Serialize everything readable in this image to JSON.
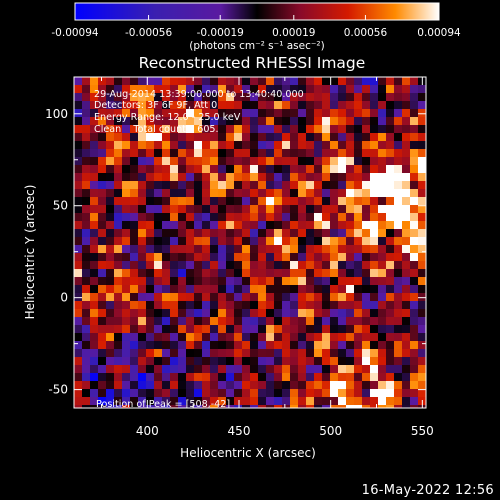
{
  "colorbar": {
    "ticks": [
      "-0.00094",
      "-0.00056",
      "-0.00019",
      "0.00019",
      "0.00056",
      "0.00094"
    ],
    "unit_label": "(photons cm⁻² s⁻¹ asec⁻²)",
    "colors": [
      "#0000ff",
      "#3a1fb0",
      "#5a1aa0",
      "#000000",
      "#8a0a2a",
      "#d41a00",
      "#ff8a00",
      "#ffffff"
    ]
  },
  "chart_data": {
    "type": "heatmap",
    "title": "Reconstructed RHESSI Image",
    "xlabel": "Heliocentric X (arcsec)",
    "ylabel": "Heliocentric Y (arcsec)",
    "xlim": [
      360,
      552
    ],
    "ylim": [
      -60,
      120
    ],
    "xticks": [
      400,
      450,
      500,
      550
    ],
    "yticks": [
      -50,
      0,
      50,
      100
    ],
    "zlim": [
      -0.00094,
      0.00094
    ],
    "annotations": [
      "29-Aug-2014 13:39:00.000 to 13:40:40.000",
      "Detectors: 3F 6F 9F, Att 0",
      "Energy Range: 12.0 - 25.0 keV",
      "Clean    Total counts: 605."
    ],
    "peak_label": "Position of Peak = [508,-42]",
    "peak": [
      508,
      -42
    ]
  },
  "footer": {
    "date": "16-May-2022 12:56"
  }
}
